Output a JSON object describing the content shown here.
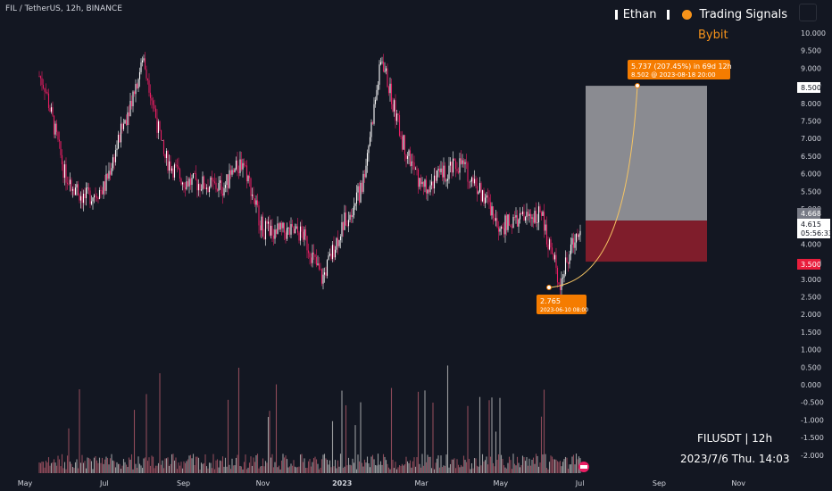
{
  "header": {
    "symbol_info": "FIL / TetherUS, 12h, BINANCE"
  },
  "watermark": {
    "author": "Ethan",
    "channel": "Trading Signals",
    "exchange": "Bybit"
  },
  "footer": {
    "pair": "FILUSDT | 12h",
    "datetime": "2023/7/6 Thu. 14:03"
  },
  "price_axis": {
    "ticks": [
      "10.000",
      "9.500",
      "9.000",
      "8.500",
      "8.000",
      "7.500",
      "7.000",
      "6.500",
      "6.000",
      "5.500",
      "5.000",
      "4.500",
      "4.000",
      "3.500",
      "3.000",
      "2.500",
      "2.000",
      "1.500",
      "1.000",
      "0.500",
      "0.000",
      "-0.500",
      "-1.000",
      "-1.500",
      "-2.000"
    ],
    "tags": {
      "target": "8.500",
      "current": "4.615",
      "countdown": "05:56:33",
      "stop": "3.500",
      "entry": "4.668"
    }
  },
  "time_axis": {
    "ticks": [
      "May",
      "Jul",
      "Sep",
      "Nov",
      "2023",
      "Mar",
      "May",
      "Jul",
      "Sep",
      "Nov"
    ]
  },
  "annotations": {
    "measure_top": "5.737 (207.45%) in 69d 12h",
    "measure_sub": "8.502 @ 2023-08-18 20:00",
    "low_price": "2.765",
    "low_date": "2023-06-10 08:00"
  },
  "colors": {
    "background": "#131722",
    "candle_up": "#ffffff",
    "candle_down": "#e91e63",
    "target_zone": "#8a8b91",
    "stop_zone": "#7f1d2b",
    "annotation": "#f57c00",
    "curve": "#f5c463"
  },
  "chart_data": {
    "type": "candlestick",
    "symbol": "FILUSDT",
    "interval": "12h",
    "exchange": "BINANCE",
    "y_range": [
      -2.0,
      10.0
    ],
    "trend": [
      {
        "x": "2022-05",
        "y": 9.5
      },
      {
        "x": "2022-05",
        "y": 8.5
      },
      {
        "x": "2022-06",
        "y": 6.0
      },
      {
        "x": "2022-06",
        "y": 5.3
      },
      {
        "x": "2022-07",
        "y": 5.6
      },
      {
        "x": "2022-08",
        "y": 9.3
      },
      {
        "x": "2022-08",
        "y": 6.5
      },
      {
        "x": "2022-09",
        "y": 5.8
      },
      {
        "x": "2022-10",
        "y": 5.6
      },
      {
        "x": "2022-10",
        "y": 6.4
      },
      {
        "x": "2022-11",
        "y": 4.4
      },
      {
        "x": "2022-12",
        "y": 4.3
      },
      {
        "x": "2022-12",
        "y": 3.0
      },
      {
        "x": "2023-01",
        "y": 4.5
      },
      {
        "x": "2023-01",
        "y": 5.6
      },
      {
        "x": "2023-02",
        "y": 9.3
      },
      {
        "x": "2023-02",
        "y": 7.0
      },
      {
        "x": "2023-03",
        "y": 5.6
      },
      {
        "x": "2023-04",
        "y": 6.3
      },
      {
        "x": "2023-04",
        "y": 5.5
      },
      {
        "x": "2023-05",
        "y": 4.5
      },
      {
        "x": "2023-06",
        "y": 4.9
      },
      {
        "x": "2023-06",
        "y": 2.9
      },
      {
        "x": "2023-07",
        "y": 4.6
      }
    ],
    "position": {
      "entry": 4.668,
      "target": 8.5,
      "stop": 3.5
    }
  }
}
